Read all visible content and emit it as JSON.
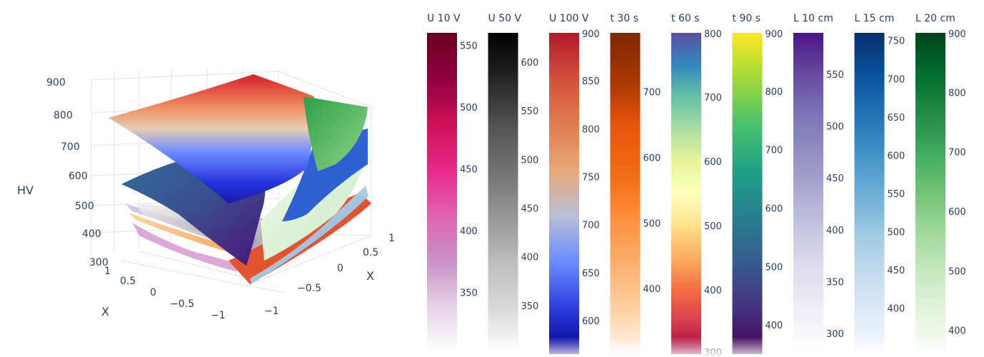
{
  "chart_data": {
    "type": "surface3d",
    "scene": {
      "zlabel": "HV",
      "xlabel": "X",
      "ylabel": "X",
      "z_ticks": [
        "300",
        "400",
        "500",
        "600",
        "700",
        "800",
        "900"
      ],
      "x_ticks": [
        "1",
        "0.5",
        "0",
        "−0.5",
        "−1"
      ],
      "y_ticks": [
        "1",
        "0.5",
        "0",
        "−0.5",
        "−1"
      ]
    },
    "series": [
      {
        "name": "U 10 V",
        "range": [
          300,
          560
        ],
        "ticks": [
          "350",
          "400",
          "450",
          "500",
          "550"
        ],
        "colors": [
          "#ffffff",
          "#e7d4e8",
          "#c994c7",
          "#df65b0",
          "#e7298a",
          "#ce1256",
          "#91003f",
          "#67001f"
        ]
      },
      {
        "name": "U 50 V",
        "range": [
          300,
          630
        ],
        "ticks": [
          "350",
          "400",
          "450",
          "500",
          "550",
          "600"
        ],
        "colors": [
          "#ffffff",
          "#d9d9d9",
          "#bdbdbd",
          "#969696",
          "#737373",
          "#525252",
          "#252525",
          "#000000"
        ]
      },
      {
        "name": "U 100 V",
        "range": [
          565,
          900
        ],
        "ticks": [
          "600",
          "650",
          "700",
          "750",
          "800",
          "850",
          "900"
        ],
        "colors": [
          "#00008b",
          "#2b3de0",
          "#6a8cff",
          "#b8bfd6",
          "#e8a87a",
          "#e07d4f",
          "#d3503c",
          "#b2182b"
        ]
      },
      {
        "name": "t 30 s",
        "range": [
          300,
          790
        ],
        "ticks": [
          "400",
          "500",
          "600",
          "700"
        ],
        "colors": [
          "#fff5eb",
          "#fdd0a2",
          "#fdae6b",
          "#fd8d3c",
          "#f16913",
          "#e6550d",
          "#a63603",
          "#7f2704"
        ]
      },
      {
        "name": "t 60 s",
        "range": [
          300,
          800
        ],
        "ticks": [
          "300",
          "400",
          "500",
          "600",
          "700",
          "800"
        ],
        "colors": [
          "#9e0142",
          "#d53e4f",
          "#f46d43",
          "#fdae61",
          "#fee08b",
          "#ffffbf",
          "#e6f598",
          "#abdda4",
          "#66c2a5",
          "#3288bd",
          "#5e4fa2"
        ]
      },
      {
        "name": "t 90 s",
        "range": [
          350,
          900
        ],
        "ticks": [
          "400",
          "500",
          "600",
          "700",
          "800",
          "900"
        ],
        "colors": [
          "#440154",
          "#46327e",
          "#365c8d",
          "#277f8e",
          "#1fa187",
          "#4ac16d",
          "#a0da39",
          "#fde725"
        ]
      },
      {
        "name": "L 10 cm",
        "range": [
          280,
          590
        ],
        "ticks": [
          "300",
          "350",
          "400",
          "450",
          "500",
          "550"
        ],
        "colors": [
          "#ffffff",
          "#efedf5",
          "#dadaeb",
          "#bcbddc",
          "#9e9ac8",
          "#807dba",
          "#6a51a3",
          "#4a1486"
        ]
      },
      {
        "name": "L 15 cm",
        "range": [
          340,
          760
        ],
        "ticks": [
          "400",
          "450",
          "500",
          "550",
          "600",
          "650",
          "700",
          "750"
        ],
        "colors": [
          "#f7fbff",
          "#deebf7",
          "#c6dbef",
          "#9ecae1",
          "#6baed6",
          "#4292c6",
          "#2171b5",
          "#08519c",
          "#08306b"
        ]
      },
      {
        "name": "L 20 cm",
        "range": [
          360,
          900
        ],
        "ticks": [
          "400",
          "500",
          "600",
          "700",
          "800",
          "900"
        ],
        "colors": [
          "#f7fcf5",
          "#e5f5e0",
          "#c7e9c0",
          "#a1d99b",
          "#74c476",
          "#41ab5d",
          "#238b45",
          "#006d2c",
          "#00441b"
        ]
      }
    ]
  }
}
